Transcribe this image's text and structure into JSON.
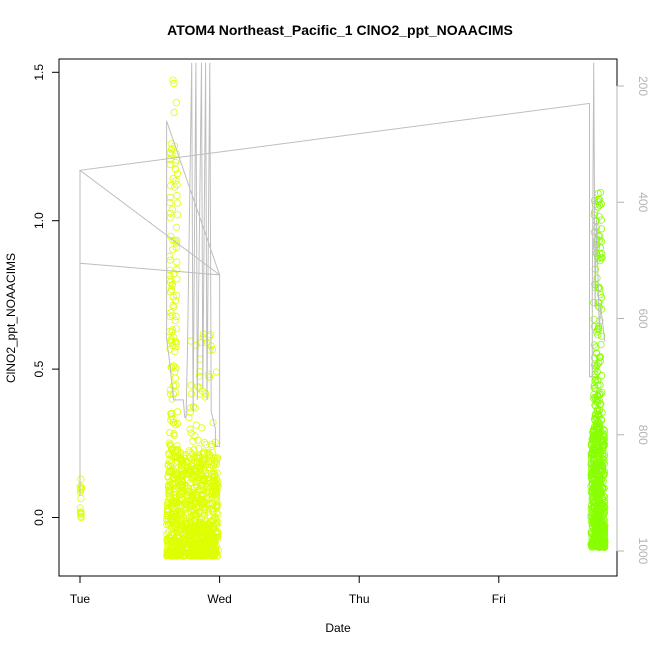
{
  "chart_data": {
    "type": "scatter",
    "title": "ATOM4 Northeast_Pacific_1 ClNO2_ppt_NOAACIMS",
    "xlabel": "Date",
    "ylabel": "ClNO2_ppt_NOAACIMS",
    "x_ticks": [
      "Tue",
      "Wed",
      "Thu",
      "Fri"
    ],
    "x_domain_days": [
      0,
      3.9
    ],
    "ylim": [
      -0.2,
      1.55
    ],
    "y_ticks": [
      0.0,
      0.5,
      1.0,
      1.5
    ],
    "y_tick_labels": [
      "0.0",
      "0.5",
      "1.0",
      "1.5"
    ],
    "y2_ticks": [
      200,
      400,
      600,
      800,
      1000
    ],
    "y2_tick_labels": [
      "200",
      "400",
      "600",
      "800",
      "1000"
    ],
    "y2_range": [
      1010,
      160
    ],
    "grid": false,
    "colors": {
      "points_early": "#ddff00",
      "points_late": "#88ff00",
      "pressure_line": "#bebebe",
      "axis": "#000000",
      "right_axis": "#b4b4b4"
    },
    "point_clusters": [
      {
        "x_start": 0.0,
        "x_end": 0.01,
        "y_min": -0.01,
        "y_max": 0.13,
        "n": 14,
        "color": "#ddff00"
      },
      {
        "x_start": 0.62,
        "x_end": 0.99,
        "y_min": -0.13,
        "y_max": 0.22,
        "n": 900,
        "color": "#ddff00"
      },
      {
        "x_start": 0.64,
        "x_end": 0.7,
        "y_min": 0.2,
        "y_max": 1.48,
        "n": 120,
        "color": "#ddff00"
      },
      {
        "x_start": 0.78,
        "x_end": 0.98,
        "y_min": 0.22,
        "y_max": 0.62,
        "n": 50,
        "color": "#ddff00"
      },
      {
        "x_start": 3.66,
        "x_end": 3.76,
        "y_min": -0.1,
        "y_max": 0.3,
        "n": 500,
        "color": "#88ff00"
      },
      {
        "x_start": 3.68,
        "x_end": 3.74,
        "y_min": 0.3,
        "y_max": 1.1,
        "n": 140,
        "color": "#88ff00"
      }
    ],
    "pressure_series": [
      {
        "x": 0.0,
        "p": 905
      },
      {
        "x": 0.0,
        "p": 905
      },
      {
        "x": 0.0,
        "p": 505
      },
      {
        "x": 0.0,
        "p": 345
      },
      {
        "x": 0.0,
        "p": 505
      },
      {
        "x": 1.0,
        "p": 525
      },
      {
        "x": 0.62,
        "p": 260
      },
      {
        "x": 0.62,
        "p": 635
      },
      {
        "x": 0.64,
        "p": 670
      },
      {
        "x": 0.67,
        "p": 740
      },
      {
        "x": 0.74,
        "p": 740
      },
      {
        "x": 0.75,
        "p": 770
      },
      {
        "x": 0.76,
        "p": 770
      },
      {
        "x": 0.77,
        "p": 650
      },
      {
        "x": 0.8,
        "p": 160
      },
      {
        "x": 0.81,
        "p": 760
      },
      {
        "x": 0.83,
        "p": 160
      },
      {
        "x": 0.84,
        "p": 740
      },
      {
        "x": 0.87,
        "p": 160
      },
      {
        "x": 0.88,
        "p": 720
      },
      {
        "x": 0.9,
        "p": 160
      },
      {
        "x": 0.91,
        "p": 740
      },
      {
        "x": 0.93,
        "p": 160
      },
      {
        "x": 0.94,
        "p": 760
      },
      {
        "x": 0.97,
        "p": 790
      },
      {
        "x": 0.97,
        "p": 820
      },
      {
        "x": 1.0,
        "p": 820
      },
      {
        "x": 1.0,
        "p": 525
      },
      {
        "x": 0.0,
        "p": 345
      },
      {
        "x": 3.65,
        "p": 230
      },
      {
        "x": 3.65,
        "p": 700
      },
      {
        "x": 3.67,
        "p": 700
      },
      {
        "x": 3.67,
        "p": 560
      },
      {
        "x": 3.68,
        "p": 160
      },
      {
        "x": 3.69,
        "p": 580
      },
      {
        "x": 3.7,
        "p": 430
      },
      {
        "x": 3.72,
        "p": 620
      },
      {
        "x": 3.73,
        "p": 580
      },
      {
        "x": 3.76,
        "p": 640
      }
    ]
  }
}
